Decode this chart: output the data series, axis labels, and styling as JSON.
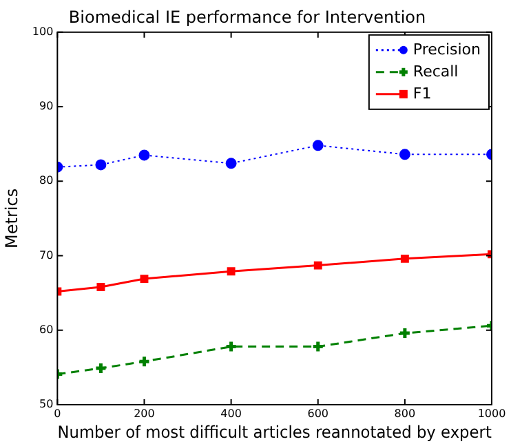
{
  "chart_data": {
    "type": "line",
    "title": "Biomedical IE performance for Intervention",
    "xlabel": "Number of most difficult articles reannotated by expert",
    "ylabel": "Metrics",
    "x": [
      0,
      100,
      200,
      400,
      600,
      800,
      1000
    ],
    "series": [
      {
        "name": "Precision",
        "color": "#0000ff",
        "values": [
          81.9,
          82.2,
          83.5,
          82.4,
          84.8,
          83.6,
          83.6
        ],
        "marker": "circle",
        "line_style": "dotted"
      },
      {
        "name": "Recall",
        "color": "#008000",
        "values": [
          54.1,
          54.9,
          55.8,
          57.8,
          57.8,
          59.6,
          60.6
        ],
        "marker": "cross",
        "line_style": "dashed"
      },
      {
        "name": "F1",
        "color": "#ff0000",
        "values": [
          65.2,
          65.8,
          66.9,
          67.9,
          68.7,
          69.6,
          70.2
        ],
        "marker": "square",
        "line_style": "solid"
      }
    ],
    "xlim": [
      0,
      1000
    ],
    "xticks": [
      0,
      200,
      400,
      600,
      800,
      1000
    ],
    "ylim": [
      50,
      100
    ],
    "yticks": [
      50,
      60,
      70,
      80,
      90,
      100
    ],
    "legend": "top right"
  }
}
